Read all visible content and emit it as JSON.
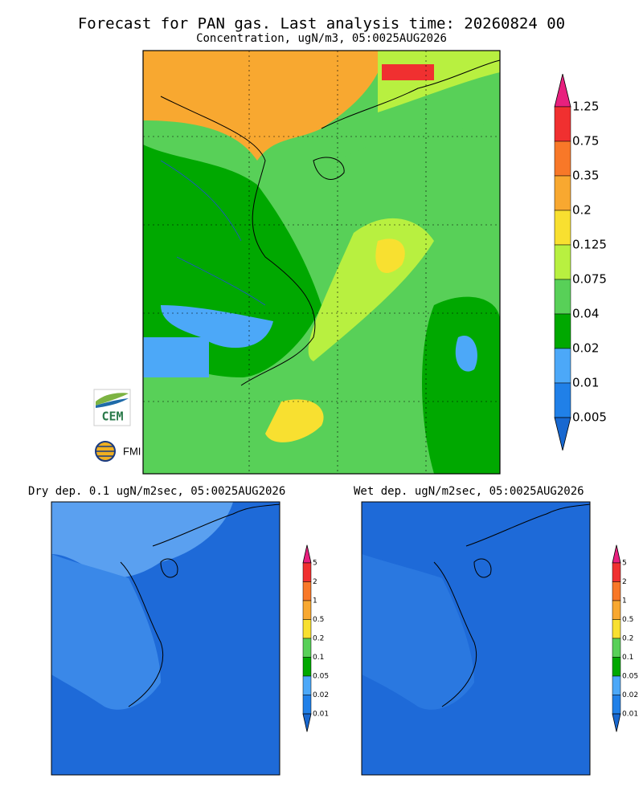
{
  "title": "Forecast for PAN gas. Last analysis time: 20260824 00",
  "subtitle": "Concentration, ugN/m3, 05:0025AUG2026",
  "main_colorbar": {
    "labels": [
      "1.25",
      "0.75",
      "0.35",
      "0.2",
      "0.125",
      "0.075",
      "0.04",
      "0.02",
      "0.01",
      "0.005"
    ],
    "colors": [
      "#e8207e",
      "#f03030",
      "#f87828",
      "#f8a830",
      "#f8e030",
      "#b8f040",
      "#58d058",
      "#00a800",
      "#4ca8f8",
      "#2080e8",
      "#1868d0"
    ]
  },
  "logos": [
    "CEM",
    "FMI"
  ],
  "dry_panel": {
    "title": "Dry dep. 0.1 ugN/m2sec, 05:0025AUG2026",
    "colorbar_labels": [
      "5",
      "2",
      "1",
      "0.5",
      "0.2",
      "0.1",
      "0.05",
      "0.02",
      "0.01"
    ]
  },
  "wet_panel": {
    "title": "Wet dep. ugN/m2sec, 05:0025AUG2026",
    "colorbar_labels": [
      "5",
      "2",
      "1",
      "0.5",
      "0.2",
      "0.1",
      "0.05",
      "0.02",
      "0.01"
    ]
  }
}
